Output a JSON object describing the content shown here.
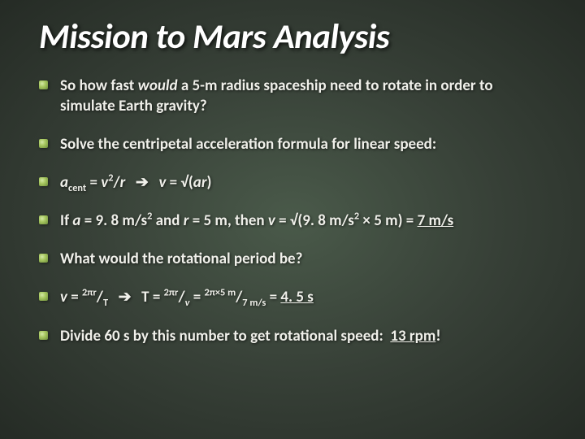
{
  "slide": {
    "title": "Mission to Mars Analysis",
    "background_gradient": [
      "#4a5a4a",
      "#374037",
      "#252b25"
    ],
    "title_fontsize": 43,
    "title_color": "#ffffff",
    "body_fontsize": 19,
    "body_color": "#f0f0ea",
    "bullet_color": "#a8c860",
    "bullets": [
      {
        "html": "So how fast <span class='ital'>would</span> a 5-m radius spaceship need to rotate in order to simulate Earth gravity?"
      },
      {
        "html": "Solve the centripetal acceleration formula for linear speed:"
      },
      {
        "html": "<span class='ital'>a</span><span class='sub'>cent</span> = <span class='ital'>v</span><span class='sup'>2</span>/<span class='ital'>r</span>&nbsp;&nbsp;<span class='arrow'>➔</span>&nbsp;&nbsp;<span class='ital'>v</span> = √(<span class='ital'>ar</span>)"
      },
      {
        "html": "If <span class='ital'>a</span> = 9. 8 m/s<span class='sup'>2</span> and <span class='ital'>r</span> = 5 m, then <span class='ital'>v</span> = √(9. 8 m/s<span class='sup'>2</span> × 5 m) = <span class='ul'>7 m/s</span>"
      },
      {
        "html": "What would the rotational period be?"
      },
      {
        "html": "<span class='ital'>v</span> = <span class='sup'>2πr</span>/<span class='sub'>T</span>&nbsp;&nbsp;<span class='arrow'>➔</span>&nbsp;&nbsp;T = <span class='sup'>2πr</span>/<span class='sub ital'>v</span> = <span class='sup'>2π×5 m</span>/<span class='sub'>7 m/s</span> = <span class='ul'>4. 5 s</span>"
      },
      {
        "html": "Divide 60 s by this number to get rotational speed:&nbsp;&nbsp;<span class='ul'>13 rpm</span>!"
      }
    ]
  }
}
